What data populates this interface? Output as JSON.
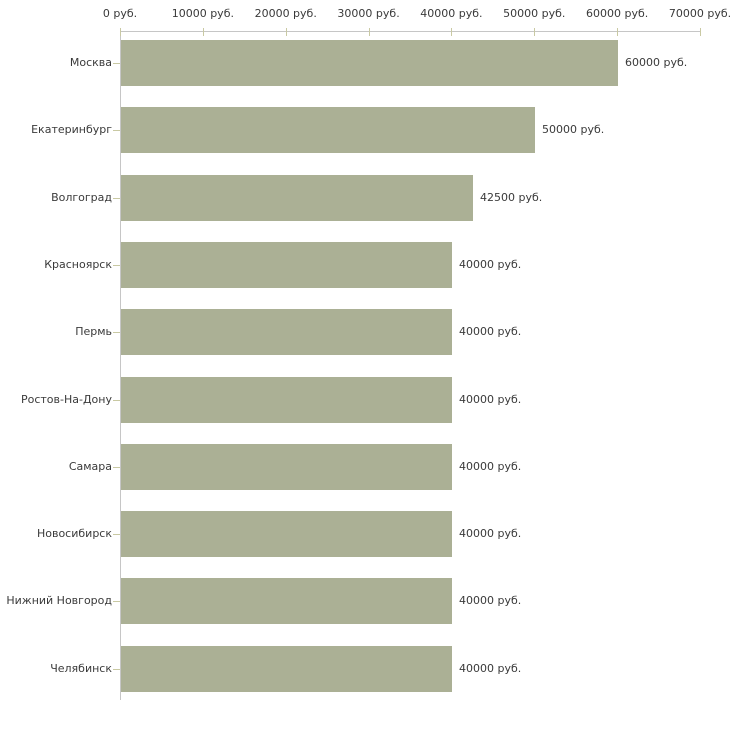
{
  "chart_data": {
    "type": "bar",
    "orientation": "horizontal",
    "title": "",
    "unit": "руб.",
    "categories": [
      "Москва",
      "Екатеринбург",
      "Волгоград",
      "Красноярск",
      "Пермь",
      "Ростов-На-Дону",
      "Самара",
      "Новосибирск",
      "Нижний Новгород",
      "Челябинск"
    ],
    "values": [
      60000,
      50000,
      42500,
      40000,
      40000,
      40000,
      40000,
      40000,
      40000,
      40000
    ],
    "value_labels": [
      "60000 руб.",
      "50000 руб.",
      "42500 руб.",
      "40000 руб.",
      "40000 руб.",
      "40000 руб.",
      "40000 руб.",
      "40000 руб.",
      "40000 руб.",
      "40000 руб."
    ],
    "x_axis": {
      "min": 0,
      "max": 70000,
      "tick_interval": 10000,
      "position": "top",
      "tick_labels": [
        "0 руб.",
        "10000 руб.",
        "20000 руб.",
        "30000 руб.",
        "40000 руб.",
        "50000 руб.",
        "60000 руб.",
        "70000 руб."
      ]
    },
    "ylabel": "",
    "xlabel": "",
    "grid": false,
    "legend": false,
    "colors": {
      "bar": "#abb095",
      "axis_line": "#c6c6c6",
      "tick": "#c9c9a3",
      "text": "#3a3a3a",
      "background": "#ffffff"
    }
  }
}
